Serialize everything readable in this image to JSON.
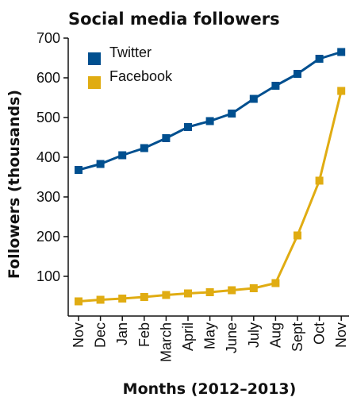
{
  "chart_data": {
    "type": "line",
    "title": "Social media followers",
    "xlabel": "Months (2012–2013)",
    "ylabel": "Followers (thousands)",
    "categories": [
      "Nov",
      "Dec",
      "Jan",
      "Feb",
      "March",
      "April",
      "May",
      "June",
      "July",
      "Aug",
      "Sept",
      "Oct",
      "Nov"
    ],
    "ylim": [
      0,
      700
    ],
    "yticks": [
      100,
      200,
      300,
      400,
      500,
      600,
      700
    ],
    "grid": false,
    "legend": "top-left",
    "series": [
      {
        "name": "Twitter",
        "color": "#004f8f",
        "marker": "square",
        "values": [
          368,
          383,
          405,
          423,
          448,
          476,
          491,
          510,
          547,
          580,
          610,
          648,
          665
        ]
      },
      {
        "name": "Facebook",
        "color": "#e0ac12",
        "marker": "square",
        "values": [
          37,
          41,
          44,
          48,
          53,
          57,
          60,
          65,
          70,
          83,
          203,
          341,
          567
        ]
      }
    ]
  }
}
